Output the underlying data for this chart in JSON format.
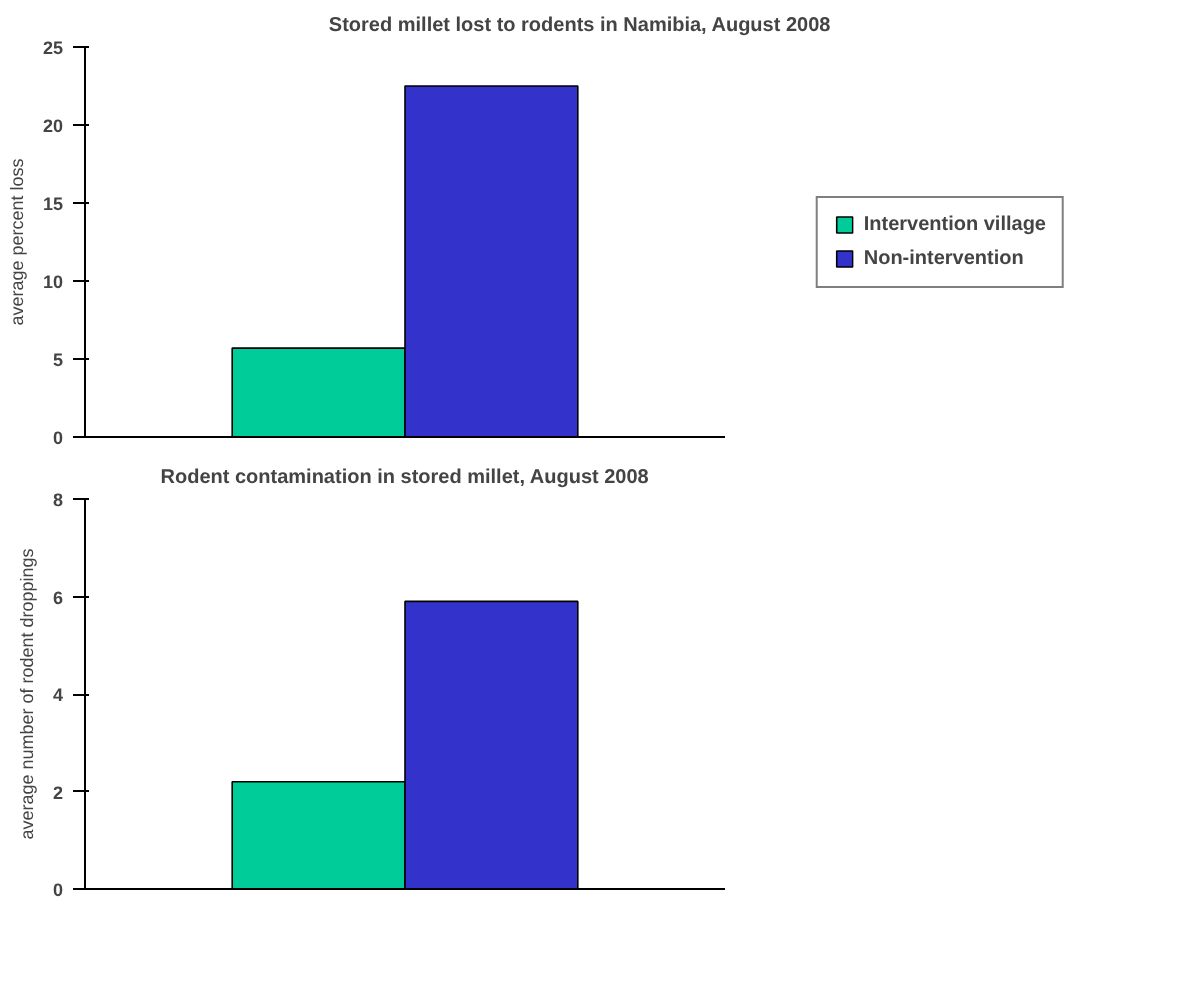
{
  "chart_data": [
    {
      "type": "bar",
      "title": "Stored millet lost to rodents in Namibia, August 2008",
      "ylabel": "average percent loss",
      "categories": [
        null
      ],
      "series": [
        {
          "name": "Intervention village",
          "color": "#00cc99",
          "values": [
            5.7
          ]
        },
        {
          "name": "Non-intervention",
          "color": "#3333cc",
          "values": [
            22.5
          ]
        }
      ],
      "ylim": [
        0,
        25
      ],
      "yticks": [
        0,
        5,
        10,
        15,
        20,
        25
      ],
      "legend": "right",
      "tick_labels": "y"
    },
    {
      "type": "bar",
      "title": "Rodent contamination in stored millet, August 2008",
      "ylabel": "average number of rodent droppings",
      "categories": [
        null
      ],
      "series": [
        {
          "color": "#00cc99",
          "values": [
            2.2
          ]
        },
        {
          "color": "#3333cc",
          "values": [
            5.9
          ]
        }
      ],
      "ylim": [
        0,
        8
      ],
      "yticks": [
        0,
        2,
        4,
        6,
        8
      ],
      "tick_labels": "y"
    }
  ]
}
